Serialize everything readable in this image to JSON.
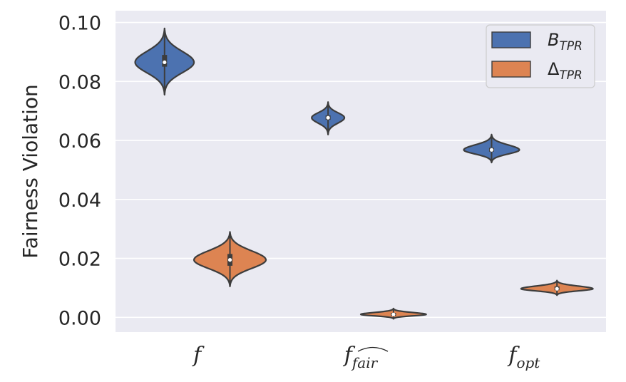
{
  "chart_data": {
    "type": "violin",
    "ylabel": "Fairness Violation",
    "ylim": [
      -0.005,
      0.104
    ],
    "yticks": [
      "0.00",
      "0.02",
      "0.04",
      "0.06",
      "0.08",
      "0.10"
    ],
    "ytick_values": [
      0.0,
      0.02,
      0.04,
      0.06,
      0.08,
      0.1
    ],
    "grid": true,
    "legend_position": "top-right",
    "categories": [
      {
        "main": "f",
        "sub": ""
      },
      {
        "main": "f",
        "sub": "fair",
        "hat": true
      },
      {
        "main": "f",
        "sub": "opt"
      }
    ],
    "series": [
      {
        "name_main": "B",
        "name_sub": "TPR",
        "color": "#4c72b0",
        "violins": [
          {
            "min": 0.0755,
            "max": 0.098,
            "median": 0.0865,
            "q1": 0.085,
            "q3": 0.089,
            "widest": 0.0865,
            "halfwidth": 0.18
          },
          {
            "min": 0.062,
            "max": 0.073,
            "median": 0.0677,
            "q1": 0.067,
            "q3": 0.0685,
            "widest": 0.0677,
            "halfwidth": 0.1
          },
          {
            "min": 0.0525,
            "max": 0.062,
            "median": 0.0568,
            "q1": 0.0562,
            "q3": 0.0575,
            "widest": 0.0568,
            "halfwidth": 0.17
          }
        ]
      },
      {
        "name_main": "Δ",
        "name_sub": "TPR",
        "color": "#dd8452",
        "violins": [
          {
            "min": 0.0105,
            "max": 0.029,
            "median": 0.0195,
            "q1": 0.0175,
            "q3": 0.0215,
            "widest": 0.0195,
            "halfwidth": 0.22
          },
          {
            "min": -0.0005,
            "max": 0.003,
            "median": 0.001,
            "q1": 0.0005,
            "q3": 0.0015,
            "widest": 0.001,
            "halfwidth": 0.2
          },
          {
            "min": 0.0075,
            "max": 0.0125,
            "median": 0.0097,
            "q1": 0.0092,
            "q3": 0.0105,
            "widest": 0.0097,
            "halfwidth": 0.22
          }
        ]
      }
    ]
  }
}
